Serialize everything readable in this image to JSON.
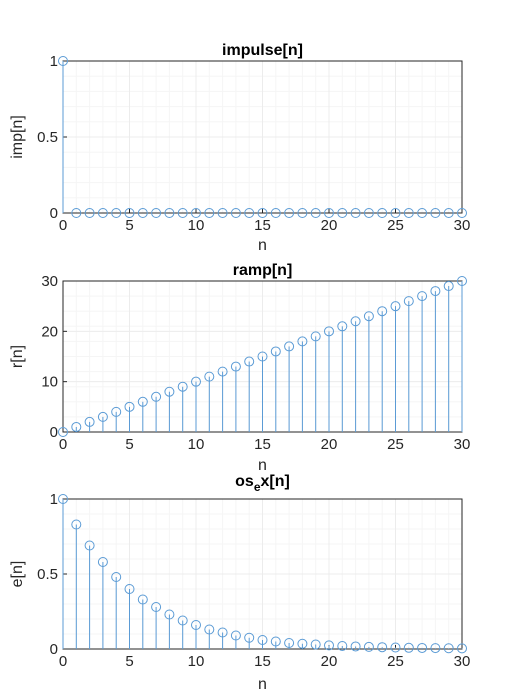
{
  "chart_data": [
    {
      "type": "stem",
      "title": "impulse[n]",
      "xlabel": "n",
      "ylabel": "imp[n]",
      "xlim": [
        0,
        30
      ],
      "ylim": [
        0,
        1
      ],
      "xticks": [
        "0",
        "5",
        "10",
        "15",
        "20",
        "25",
        "30"
      ],
      "yticks": [
        "0",
        "0.5",
        "1"
      ],
      "grid": true,
      "color": "#5b9bd5",
      "x": [
        0,
        1,
        2,
        3,
        4,
        5,
        6,
        7,
        8,
        9,
        10,
        11,
        12,
        13,
        14,
        15,
        16,
        17,
        18,
        19,
        20,
        21,
        22,
        23,
        24,
        25,
        26,
        27,
        28,
        29,
        30
      ],
      "y": [
        1,
        0,
        0,
        0,
        0,
        0,
        0,
        0,
        0,
        0,
        0,
        0,
        0,
        0,
        0,
        0,
        0,
        0,
        0,
        0,
        0,
        0,
        0,
        0,
        0,
        0,
        0,
        0,
        0,
        0,
        0
      ]
    },
    {
      "type": "stem",
      "title": "ramp[n]",
      "xlabel": "n",
      "ylabel": "r[n]",
      "xlim": [
        0,
        30
      ],
      "ylim": [
        0,
        30
      ],
      "xticks": [
        "0",
        "5",
        "10",
        "15",
        "20",
        "25",
        "30"
      ],
      "yticks": [
        "0",
        "10",
        "20",
        "30"
      ],
      "grid": true,
      "color": "#5b9bd5",
      "x": [
        0,
        1,
        2,
        3,
        4,
        5,
        6,
        7,
        8,
        9,
        10,
        11,
        12,
        13,
        14,
        15,
        16,
        17,
        18,
        19,
        20,
        21,
        22,
        23,
        24,
        25,
        26,
        27,
        28,
        29,
        30
      ],
      "y": [
        0,
        1,
        2,
        3,
        4,
        5,
        6,
        7,
        8,
        9,
        10,
        11,
        12,
        13,
        14,
        15,
        16,
        17,
        18,
        19,
        20,
        21,
        22,
        23,
        24,
        25,
        26,
        27,
        28,
        29,
        30
      ]
    },
    {
      "type": "stem",
      "title_main": "os",
      "title_sub": "e",
      "title_rest": "x[n]",
      "xlabel": "n",
      "ylabel": "e[n]",
      "xlim": [
        0,
        30
      ],
      "ylim": [
        0,
        1
      ],
      "xticks": [
        "0",
        "5",
        "10",
        "15",
        "20",
        "25",
        "30"
      ],
      "yticks": [
        "0",
        "0.5",
        "1"
      ],
      "grid": true,
      "color": "#5b9bd5",
      "x": [
        0,
        1,
        2,
        3,
        4,
        5,
        6,
        7,
        8,
        9,
        10,
        11,
        12,
        13,
        14,
        15,
        16,
        17,
        18,
        19,
        20,
        21,
        22,
        23,
        24,
        25,
        26,
        27,
        28,
        29,
        30
      ],
      "y": [
        1,
        0.83,
        0.69,
        0.58,
        0.48,
        0.4,
        0.33,
        0.28,
        0.23,
        0.19,
        0.16,
        0.13,
        0.11,
        0.09,
        0.075,
        0.06,
        0.05,
        0.04,
        0.035,
        0.03,
        0.024,
        0.02,
        0.017,
        0.014,
        0.012,
        0.01,
        0.008,
        0.007,
        0.006,
        0.005,
        0.004
      ]
    }
  ]
}
